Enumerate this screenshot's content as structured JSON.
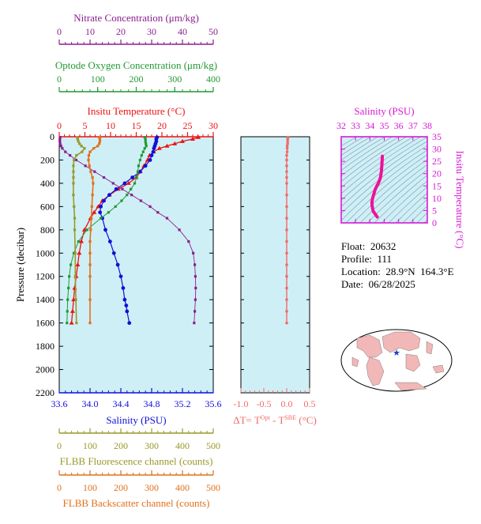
{
  "info": {
    "float": "Float:  20632",
    "profile": "Profile:  111",
    "location": "Location:  28.9°N  164.3°E",
    "date": "Date:  06/28/2025"
  },
  "colors": {
    "plot_bg": "#cfeff6",
    "temperature": "#ee1111",
    "salinity": "#1010d8",
    "oxygen": "#229933",
    "nitrate": "#8b1f8e",
    "fluorescence": "#99992b",
    "backscatter": "#e0701a",
    "delta_t": "#f06a6a",
    "ts_axis": "#d61ad6",
    "ts_curve": "#ee1199",
    "land": "#f2b7b7",
    "ocean": "#ffffff",
    "float_marker": "#1a3fbf"
  },
  "chart_data": [
    {
      "type": "line",
      "panel": "main-profile",
      "ylabel": "Pressure (decibar)",
      "y_axis": {
        "label": "Pressure (decibar)",
        "range": [
          0,
          2200
        ],
        "inverted": true,
        "ticks": [
          0,
          200,
          400,
          600,
          800,
          1000,
          1200,
          1400,
          1600,
          1800,
          2000,
          2200
        ]
      },
      "x_axes": [
        {
          "id": "nitrate",
          "label": "Nitrate Concentration (μm/kg)",
          "range": [
            0,
            50
          ],
          "ticks": [
            0,
            10,
            20,
            30,
            40,
            50
          ],
          "tick_labels": [
            "0",
            "10",
            "20",
            "30",
            "40",
            "50"
          ],
          "color": "#8b1f8e"
        },
        {
          "id": "oxygen",
          "label": "Optode Oxygen Concentration (μm/kg)",
          "range": [
            0,
            400
          ],
          "ticks": [
            0,
            100,
            200,
            300,
            400
          ],
          "tick_labels": [
            "0",
            "100",
            "200",
            "300",
            "400"
          ],
          "color": "#229933"
        },
        {
          "id": "temperature",
          "label": "Insitu Temperature (°C)",
          "range": [
            0,
            30
          ],
          "ticks": [
            0,
            5,
            10,
            15,
            20,
            25,
            30
          ],
          "tick_labels": [
            "0",
            "5",
            "10",
            "15",
            "20",
            "25",
            "30"
          ],
          "color": "#ee1111"
        },
        {
          "id": "salinity",
          "label": "Salinity (PSU)",
          "range": [
            33.6,
            35.6
          ],
          "ticks": [
            33.6,
            34.0,
            34.4,
            34.8,
            35.2,
            35.6
          ],
          "tick_labels": [
            "33.6",
            "34.0",
            "34.4",
            "34.8",
            "35.2",
            "35.6"
          ],
          "color": "#1010d8"
        },
        {
          "id": "fluorescence",
          "label": "FLBB Fluorescence channel (counts)",
          "range": [
            0,
            500
          ],
          "ticks": [
            0,
            100,
            200,
            300,
            400,
            500
          ],
          "tick_labels": [
            "0",
            "100",
            "200",
            "300",
            "400",
            "500"
          ],
          "color": "#99992b"
        },
        {
          "id": "backscatter",
          "label": "FLBB Backscatter channel (counts)",
          "range": [
            0,
            500
          ],
          "ticks": [
            0,
            100,
            200,
            300,
            400,
            500
          ],
          "tick_labels": [
            "0",
            "100",
            "200",
            "300",
            "400",
            "500"
          ],
          "color": "#e0701a"
        }
      ],
      "grid": false,
      "series": [
        {
          "axis": "temperature",
          "y": [
            5,
            20,
            40,
            60,
            80,
            100,
            130,
            160,
            200,
            250,
            300,
            350,
            400,
            450,
            500,
            550,
            600,
            650,
            700,
            800,
            900,
            1000,
            1100,
            1200,
            1300,
            1400,
            1500,
            1600
          ],
          "x": [
            27.1,
            26.0,
            24.0,
            22.5,
            21.0,
            19.5,
            18.4,
            17.6,
            17.2,
            16.5,
            15.8,
            15.0,
            13.5,
            11.5,
            9.8,
            8.4,
            7.6,
            6.8,
            6.1,
            4.9,
            4.3,
            3.9,
            3.6,
            3.3,
            3.0,
            2.8,
            2.6,
            2.4
          ]
        },
        {
          "axis": "salinity",
          "y": [
            5,
            20,
            40,
            60,
            80,
            100,
            130,
            160,
            200,
            250,
            300,
            350,
            400,
            450,
            500,
            550,
            600,
            650,
            700,
            800,
            900,
            1000,
            1100,
            1200,
            1300,
            1400,
            1450,
            1500,
            1600
          ],
          "x": [
            34.87,
            34.86,
            34.86,
            34.85,
            34.84,
            34.83,
            34.82,
            34.8,
            34.78,
            34.72,
            34.65,
            34.55,
            34.45,
            34.34,
            34.25,
            34.18,
            34.14,
            34.13,
            34.16,
            34.2,
            34.26,
            34.31,
            34.36,
            34.4,
            34.43,
            34.45,
            34.47,
            34.48,
            34.51
          ]
        },
        {
          "axis": "oxygen",
          "y": [
            5,
            20,
            40,
            60,
            80,
            100,
            130,
            160,
            200,
            250,
            300,
            350,
            400,
            450,
            500,
            550,
            600,
            650,
            700,
            800,
            900,
            1000,
            1100,
            1200,
            1300,
            1400,
            1500,
            1600
          ],
          "x": [
            222,
            224,
            224,
            225,
            226,
            222,
            218,
            214,
            210,
            206,
            204,
            201,
            196,
            186,
            176,
            162,
            146,
            128,
            108,
            72,
            50,
            38,
            30,
            26,
            24,
            22,
            21,
            20
          ]
        },
        {
          "axis": "nitrate",
          "y": [
            5,
            20,
            40,
            60,
            80,
            100,
            130,
            160,
            200,
            250,
            300,
            350,
            400,
            450,
            500,
            550,
            600,
            650,
            700,
            800,
            900,
            1000,
            1100,
            1200,
            1300,
            1400,
            1500,
            1600
          ],
          "x": [
            0.3,
            0.2,
            0.2,
            0.3,
            0.6,
            1.0,
            2.0,
            3.5,
            5.5,
            8.5,
            11.5,
            14.5,
            17.5,
            20.5,
            23.5,
            26.5,
            29.5,
            32.0,
            35.0,
            39.0,
            42.0,
            43.5,
            44.0,
            44.2,
            44.3,
            44.2,
            44.0,
            43.8
          ]
        },
        {
          "axis": "fluorescence",
          "y": [
            5,
            20,
            40,
            60,
            80,
            100,
            130,
            160,
            200,
            250,
            300,
            350,
            400,
            500,
            600,
            700,
            800,
            1000,
            1200,
            1400,
            1600
          ],
          "x": [
            58,
            60,
            62,
            66,
            72,
            82,
            74,
            56,
            48,
            46,
            46,
            46,
            46,
            46,
            48,
            50,
            50,
            52,
            52,
            54,
            56
          ]
        },
        {
          "axis": "backscatter",
          "y": [
            5,
            20,
            40,
            60,
            80,
            100,
            130,
            160,
            200,
            250,
            300,
            350,
            400,
            500,
            600,
            700,
            800,
            900,
            1000,
            1100,
            1200,
            1400,
            1600
          ],
          "x": [
            130,
            132,
            132,
            130,
            125,
            112,
            100,
            96,
            95,
            98,
            102,
            108,
            110,
            108,
            106,
            104,
            102,
            100,
            100,
            100,
            100,
            100,
            100
          ]
        }
      ]
    },
    {
      "type": "line",
      "panel": "delta-t",
      "xlabel_parts": [
        "ΔT= T",
        "Opt",
        " - T",
        "SBE",
        " (°C)"
      ],
      "x_axis": {
        "range": [
          -1.0,
          0.5
        ],
        "ticks": [
          -1.0,
          -0.5,
          0.0,
          0.5
        ],
        "tick_labels": [
          "-1.0",
          "-0.5",
          "0.0",
          "0.5"
        ]
      },
      "y_axis": {
        "range": [
          0,
          2200
        ],
        "inverted": true
      },
      "series": [
        {
          "y": [
            5,
            20,
            40,
            60,
            80,
            100,
            130,
            160,
            200,
            250,
            300,
            350,
            400,
            500,
            600,
            700,
            800,
            900,
            1000,
            1100,
            1200,
            1300,
            1400,
            1500,
            1600
          ],
          "x": [
            0.03,
            0.02,
            0.02,
            0.02,
            0.01,
            0.01,
            0.01,
            0.0,
            0.0,
            0.0,
            0.0,
            0.0,
            0.0,
            0.0,
            0.0,
            0.0,
            0.0,
            0.0,
            0.0,
            0.0,
            0.0,
            0.0,
            0.0,
            0.0,
            0.0
          ]
        }
      ]
    },
    {
      "type": "line",
      "panel": "ts-diagram",
      "xlabel": "Salinity (PSU)",
      "ylabel": "Insitu Temperature (°C)",
      "x_axis": {
        "range": [
          32,
          38
        ],
        "ticks": [
          32,
          33,
          34,
          35,
          36,
          37,
          38
        ],
        "tick_labels": [
          "32",
          "33",
          "34",
          "35",
          "36",
          "37",
          "38"
        ]
      },
      "y_axis": {
        "range": [
          0,
          35
        ],
        "ticks": [
          0,
          5,
          10,
          15,
          20,
          25,
          30,
          35
        ],
        "tick_labels": [
          "0",
          "5",
          "10",
          "15",
          "20",
          "25",
          "30",
          "35"
        ]
      },
      "series": [
        {
          "x": [
            34.51,
            34.46,
            34.4,
            34.34,
            34.28,
            34.22,
            34.18,
            34.15,
            34.14,
            34.18,
            34.26,
            34.36,
            34.48,
            34.62,
            34.74,
            34.8,
            34.84,
            34.87
          ],
          "y": [
            2.4,
            2.8,
            3.3,
            3.9,
            4.3,
            4.9,
            6.1,
            7.2,
            8.4,
            9.8,
            11.5,
            13.5,
            15.0,
            16.5,
            18.5,
            21.0,
            24.0,
            27.1
          ]
        }
      ]
    }
  ]
}
